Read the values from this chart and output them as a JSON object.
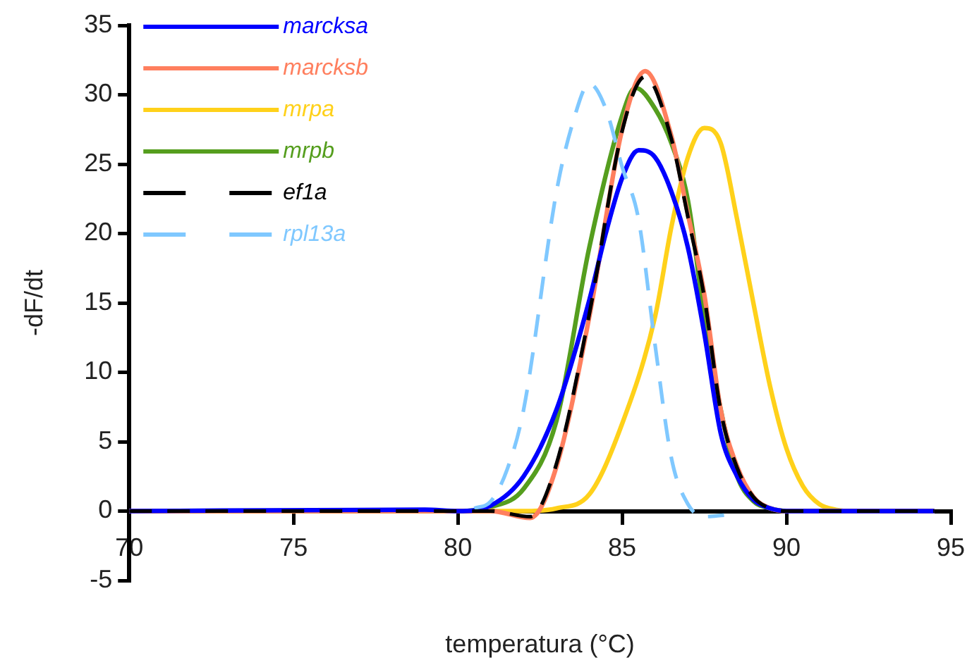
{
  "chart_data": {
    "type": "line",
    "xlabel": "temperatura (°C)",
    "ylabel": "-dF/dt",
    "xlim": [
      70,
      95
    ],
    "xticks": [
      70,
      75,
      80,
      85,
      90,
      95
    ],
    "ylim": [
      -5,
      35
    ],
    "yticks": [
      -5,
      0,
      5,
      10,
      15,
      20,
      25,
      30,
      35
    ],
    "grid": false,
    "legend": "top left",
    "marker": "none",
    "series": [
      {
        "name": "marcksa",
        "color": "#0000ff",
        "line_style": "solid",
        "x": [
          70,
          79,
          80,
          81,
          82,
          83,
          84,
          84.5,
          85,
          85.5,
          86,
          86.5,
          87,
          87.5,
          88,
          88.5,
          89,
          89.5,
          90,
          91,
          94.5
        ],
        "values": [
          0,
          0.1,
          0,
          0.4,
          2.5,
          7.3,
          15.2,
          20,
          24,
          26,
          25.5,
          23,
          19,
          12.8,
          5.6,
          2.5,
          0.8,
          0.2,
          0,
          0,
          0
        ]
      },
      {
        "name": "marcksb",
        "color": "#ff7f5e",
        "line_style": "solid",
        "x": [
          70,
          79,
          81,
          82.2,
          83,
          84,
          85,
          85.7,
          86.5,
          87,
          87.5,
          88,
          88.5,
          89,
          89.5,
          90,
          94.5
        ],
        "values": [
          0,
          0,
          0,
          -0.5,
          3.2,
          14,
          27.5,
          31.7,
          27,
          21.4,
          15.6,
          7.3,
          3.2,
          1,
          0.2,
          0,
          0
        ]
      },
      {
        "name": "mrpa",
        "color": "#ffd11a",
        "line_style": "solid",
        "x": [
          70,
          82,
          83,
          84,
          85,
          86,
          86.5,
          87,
          87.5,
          88,
          88.5,
          89,
          89.5,
          90,
          90.5,
          91,
          91.5,
          92,
          94.5
        ],
        "values": [
          0,
          0,
          0.2,
          1.2,
          6.3,
          14,
          20.5,
          25.5,
          27.6,
          26.5,
          21,
          14.9,
          9,
          4.5,
          1.8,
          0.5,
          0.1,
          0,
          0
        ]
      },
      {
        "name": "mrpb",
        "color": "#559e1e",
        "line_style": "solid",
        "x": [
          70,
          80,
          81,
          82,
          83,
          84,
          85,
          85.4,
          86,
          86.5,
          87,
          87.5,
          88,
          88.5,
          89,
          89.5,
          90,
          94.5
        ],
        "values": [
          0,
          0,
          0.3,
          1.6,
          6.5,
          19,
          28.5,
          30.5,
          29,
          26.5,
          22.4,
          14,
          7.3,
          2.5,
          0.7,
          0.2,
          0,
          0
        ]
      },
      {
        "name": "ef1a",
        "color": "#000000",
        "line_style": "dashed",
        "x": [
          70,
          79,
          81,
          82.2,
          83,
          84,
          85,
          85.7,
          86.5,
          87,
          87.5,
          88,
          88.5,
          89,
          89.5,
          90,
          94.5
        ],
        "values": [
          0,
          0,
          0,
          -0.4,
          3.4,
          14.2,
          27.4,
          31.3,
          26.8,
          21.2,
          15.4,
          7.2,
          3.1,
          1,
          0.2,
          0,
          0
        ]
      },
      {
        "name": "rpl13a",
        "color": "#7fc8ff",
        "line_style": "dashed",
        "x": [
          80.5,
          81,
          81.5,
          82,
          83,
          83.5,
          84,
          84.5,
          85,
          85.5,
          86,
          86.5,
          87,
          87.5,
          88.1
        ],
        "values": [
          0.2,
          0.7,
          3,
          7.3,
          23,
          28,
          30.8,
          29,
          24.8,
          21,
          12,
          3.8,
          0.5,
          -0.4,
          -0.3
        ]
      }
    ]
  }
}
